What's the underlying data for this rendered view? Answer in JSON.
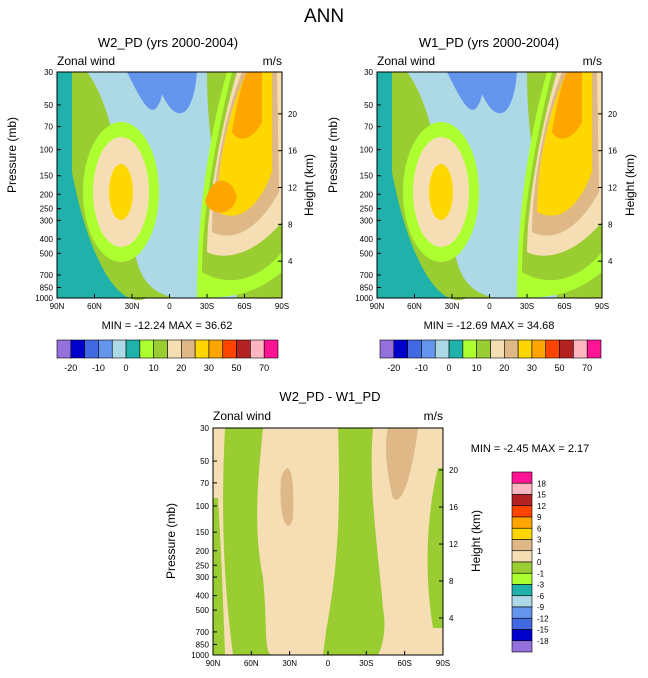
{
  "page_title": "ANN",
  "chart_data": [
    {
      "type": "heatmap",
      "title": "W2_PD (yrs 2000-2004)",
      "left_label": "Zonal wind",
      "right_label": "m/s",
      "xlabel": "",
      "ylabel": "Pressure (mb)",
      "y2label": "Height (km)",
      "x_ticks": [
        "90N",
        "60N",
        "30N",
        "0",
        "30S",
        "60S",
        "90S"
      ],
      "x_range": [
        90,
        -90
      ],
      "y_ticks": [
        30,
        50,
        70,
        100,
        150,
        200,
        250,
        300,
        400,
        500,
        700,
        850,
        1000
      ],
      "y_range": [
        30,
        1000
      ],
      "y2_ticks": [
        4,
        8,
        12,
        16,
        20
      ],
      "stats": "MIN = -12.24  MAX =  36.62",
      "min": -12.24,
      "max": 36.62,
      "colorbar_orientation": "horizontal",
      "colorbar_labels": [
        "-20",
        "-10",
        "0",
        "10",
        "20",
        "30",
        "50",
        "70"
      ],
      "colors": [
        "#9370DB",
        "#0000CD",
        "#4169E1",
        "#6495ED",
        "#ADD8E6",
        "#20B2AA",
        "#ADFF2F",
        "#9ACD32",
        "#F5DEB3",
        "#DEB887",
        "#FFD700",
        "#FFA500",
        "#FF4500",
        "#B22222",
        "#FFB6C1",
        "#FF1493"
      ]
    },
    {
      "type": "heatmap",
      "title": "W1_PD (yrs 2000-2004)",
      "left_label": "Zonal wind",
      "right_label": "m/s",
      "xlabel": "",
      "ylabel": "Pressure (mb)",
      "y2label": "Height (km)",
      "x_ticks": [
        "90N",
        "60N",
        "30N",
        "0",
        "30S",
        "60S",
        "90S"
      ],
      "x_range": [
        90,
        -90
      ],
      "y_ticks": [
        30,
        50,
        70,
        100,
        150,
        200,
        250,
        300,
        400,
        500,
        700,
        850,
        1000
      ],
      "y_range": [
        30,
        1000
      ],
      "y2_ticks": [
        4,
        8,
        12,
        16,
        20
      ],
      "stats": "MIN = -12.69  MAX =  34.68",
      "min": -12.69,
      "max": 34.68,
      "colorbar_orientation": "horizontal",
      "colorbar_labels": [
        "-20",
        "-10",
        "0",
        "10",
        "20",
        "30",
        "50",
        "70"
      ],
      "colors": [
        "#9370DB",
        "#0000CD",
        "#4169E1",
        "#6495ED",
        "#ADD8E6",
        "#20B2AA",
        "#ADFF2F",
        "#9ACD32",
        "#F5DEB3",
        "#DEB887",
        "#FFD700",
        "#FFA500",
        "#FF4500",
        "#B22222",
        "#FFB6C1",
        "#FF1493"
      ]
    },
    {
      "type": "heatmap",
      "title": "W2_PD - W1_PD",
      "left_label": "Zonal wind",
      "right_label": "m/s",
      "xlabel": "",
      "ylabel": "Pressure (mb)",
      "y2label": "Height (km)",
      "x_ticks": [
        "90N",
        "60N",
        "30N",
        "0",
        "30S",
        "60S",
        "90S"
      ],
      "x_range": [
        90,
        -90
      ],
      "y_ticks": [
        30,
        50,
        70,
        100,
        150,
        200,
        250,
        300,
        400,
        500,
        700,
        850,
        1000
      ],
      "y_range": [
        30,
        1000
      ],
      "y2_ticks": [
        4,
        8,
        12,
        16,
        20
      ],
      "stats": "MIN =  -2.45  MAX =   2.17",
      "min": -2.45,
      "max": 2.17,
      "colorbar_orientation": "vertical",
      "colorbar_labels": [
        "18",
        "15",
        "12",
        "9",
        "6",
        "3",
        "1",
        "0",
        "-1",
        "-3",
        "-6",
        "-9",
        "-12",
        "-15",
        "-18"
      ],
      "colors": [
        "#FF1493",
        "#FFB6C1",
        "#B22222",
        "#FF4500",
        "#FFA500",
        "#FFD700",
        "#DEB887",
        "#F5DEB3",
        "#9ACD32",
        "#ADFF2F",
        "#20B2AA",
        "#ADD8E6",
        "#6495ED",
        "#4169E1",
        "#0000CD",
        "#9370DB"
      ]
    }
  ]
}
